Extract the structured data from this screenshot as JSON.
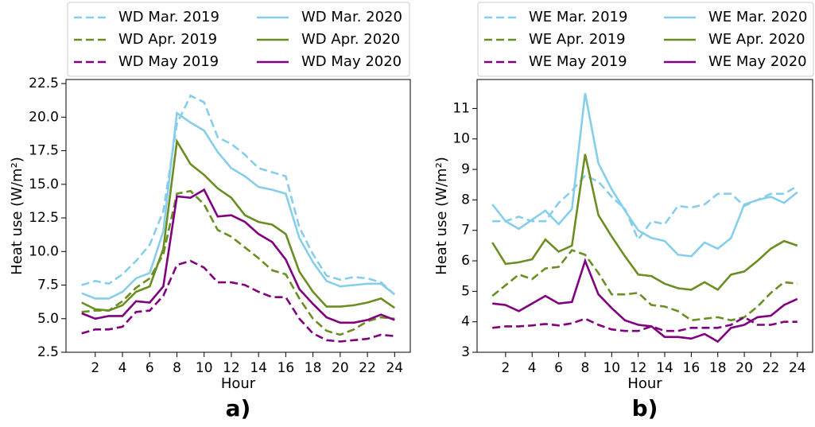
{
  "chart_data": [
    {
      "type": "line",
      "label": "a)",
      "xlabel": "Hour",
      "ylabel": "Heat use (W/m²)",
      "x": [
        1,
        2,
        3,
        4,
        5,
        6,
        7,
        8,
        9,
        10,
        11,
        12,
        13,
        14,
        15,
        16,
        17,
        18,
        19,
        20,
        21,
        22,
        23,
        24
      ],
      "xlim": [
        -0.15,
        25.15
      ],
      "xticks": [
        2,
        4,
        6,
        8,
        10,
        12,
        14,
        16,
        18,
        20,
        22,
        24
      ],
      "ylim": [
        2.5,
        22.8
      ],
      "yticks": [
        2.5,
        {
          "value": 5,
          "label": "5.0"
        },
        7.5,
        {
          "value": 10,
          "label": "10.0"
        },
        12.5,
        {
          "value": 15,
          "label": "15.0"
        },
        17.5,
        {
          "value": 20,
          "label": "20.0"
        },
        22.5
      ],
      "series": [
        {
          "name": "WD Mar. 2019",
          "color": "#87ceeb",
          "linestyle": "dashed",
          "values": [
            7.5,
            7.8,
            7.6,
            8.3,
            9.3,
            10.5,
            13,
            19.5,
            21.6,
            21.1,
            18.5,
            18.0,
            17.2,
            16.2,
            15.9,
            15.6,
            11.8,
            9.8,
            8.2,
            7.9,
            8.1,
            8.0,
            7.7,
            6.8
          ]
        },
        {
          "name": "WD Apr. 2019",
          "color": "#6b8e23",
          "linestyle": "dashed",
          "values": [
            5.5,
            5.6,
            5.6,
            6.3,
            7.3,
            8.0,
            9.8,
            14.3,
            14.5,
            13.5,
            11.6,
            11.1,
            10.3,
            9.5,
            8.6,
            8.3,
            6.5,
            5.0,
            4.1,
            3.8,
            4.2,
            4.8,
            5.1,
            5.0
          ]
        },
        {
          "name": "WD May 2019",
          "color": "#800080",
          "linestyle": "dashed",
          "values": [
            3.9,
            4.2,
            4.2,
            4.4,
            5.5,
            5.6,
            6.7,
            9.0,
            9.3,
            8.8,
            7.7,
            7.7,
            7.5,
            7.0,
            6.6,
            6.6,
            5.0,
            3.9,
            3.4,
            3.3,
            3.4,
            3.5,
            3.8,
            3.7
          ]
        },
        {
          "name": "WD Mar. 2020",
          "color": "#87ceeb",
          "linestyle": "solid",
          "values": [
            6.9,
            6.5,
            6.5,
            7.0,
            8.0,
            8.4,
            11.5,
            20.3,
            19.6,
            19.0,
            17.4,
            16.2,
            15.6,
            14.8,
            14.6,
            14.3,
            11.0,
            9.2,
            7.8,
            7.4,
            7.5,
            7.6,
            7.6,
            6.8
          ]
        },
        {
          "name": "WD Apr. 2020",
          "color": "#6b8e23",
          "linestyle": "solid",
          "values": [
            6.2,
            5.7,
            5.6,
            6.0,
            7.0,
            7.4,
            10.2,
            18.2,
            16.5,
            15.7,
            14.7,
            14.0,
            12.7,
            12.2,
            12.0,
            11.3,
            8.5,
            7.0,
            5.9,
            5.9,
            6.0,
            6.2,
            6.5,
            5.8
          ]
        },
        {
          "name": "WD May 2020",
          "color": "#800080",
          "linestyle": "solid",
          "values": [
            5.4,
            5.0,
            5.2,
            5.2,
            6.3,
            6.2,
            7.4,
            14.1,
            14.0,
            14.6,
            12.6,
            12.7,
            12.2,
            11.3,
            10.7,
            9.4,
            7.2,
            6.1,
            5.1,
            4.7,
            4.7,
            4.9,
            5.3,
            4.9
          ]
        }
      ]
    },
    {
      "type": "line",
      "label": "b)",
      "xlabel": "Hour",
      "ylabel": "Heat use (W/m²)",
      "x": [
        1,
        2,
        3,
        4,
        5,
        6,
        7,
        8,
        9,
        10,
        11,
        12,
        13,
        14,
        15,
        16,
        17,
        18,
        19,
        20,
        21,
        22,
        23,
        24
      ],
      "xlim": [
        -0.15,
        25.15
      ],
      "xticks": [
        2,
        4,
        6,
        8,
        10,
        12,
        14,
        16,
        18,
        20,
        22,
        24
      ],
      "ylim": [
        3,
        11.95
      ],
      "yticks": [
        3,
        4,
        5,
        6,
        7,
        8,
        9,
        10,
        11
      ],
      "series": [
        {
          "name": "WE Mar. 2019",
          "color": "#87ceeb",
          "linestyle": "dashed",
          "values": [
            7.3,
            7.3,
            7.45,
            7.3,
            7.3,
            7.9,
            8.3,
            8.8,
            8.6,
            8.1,
            7.7,
            6.7,
            7.3,
            7.2,
            7.8,
            7.75,
            7.85,
            8.2,
            8.2,
            7.8,
            8.0,
            8.2,
            8.2,
            8.45
          ]
        },
        {
          "name": "WE Apr. 2019",
          "color": "#6b8e23",
          "linestyle": "dashed",
          "values": [
            4.85,
            5.2,
            5.55,
            5.4,
            5.75,
            5.8,
            6.35,
            6.2,
            5.6,
            4.9,
            4.9,
            4.95,
            4.55,
            4.5,
            4.35,
            4.05,
            4.1,
            4.15,
            4.05,
            4.15,
            4.5,
            4.95,
            5.3,
            5.25
          ]
        },
        {
          "name": "WE May 2019",
          "color": "#800080",
          "linestyle": "dashed",
          "values": [
            3.8,
            3.85,
            3.85,
            3.88,
            3.93,
            3.88,
            3.95,
            4.1,
            3.9,
            3.75,
            3.7,
            3.7,
            3.85,
            3.7,
            3.7,
            3.8,
            3.8,
            3.8,
            3.9,
            4.15,
            3.9,
            3.9,
            4.0,
            4.0
          ]
        },
        {
          "name": "WE Mar. 2020",
          "color": "#87ceeb",
          "linestyle": "solid",
          "values": [
            7.85,
            7.3,
            7.05,
            7.35,
            7.65,
            7.2,
            7.7,
            11.5,
            9.2,
            8.35,
            7.65,
            7.0,
            6.75,
            6.65,
            6.2,
            6.15,
            6.6,
            6.4,
            6.75,
            7.85,
            8.0,
            8.1,
            7.9,
            8.25
          ]
        },
        {
          "name": "WE Apr. 2020",
          "color": "#6b8e23",
          "linestyle": "solid",
          "values": [
            6.6,
            5.9,
            5.95,
            6.05,
            6.7,
            6.3,
            6.5,
            9.5,
            7.5,
            6.8,
            6.15,
            5.55,
            5.5,
            5.25,
            5.1,
            5.05,
            5.3,
            5.05,
            5.55,
            5.65,
            6.0,
            6.4,
            6.65,
            6.5
          ]
        },
        {
          "name": "WE May 2020",
          "color": "#800080",
          "linestyle": "solid",
          "values": [
            4.6,
            4.55,
            4.35,
            4.6,
            4.85,
            4.6,
            4.65,
            6.0,
            4.9,
            4.45,
            4.05,
            3.9,
            3.85,
            3.5,
            3.5,
            3.45,
            3.6,
            3.35,
            3.8,
            3.9,
            4.15,
            4.2,
            4.55,
            4.75
          ]
        }
      ]
    }
  ]
}
